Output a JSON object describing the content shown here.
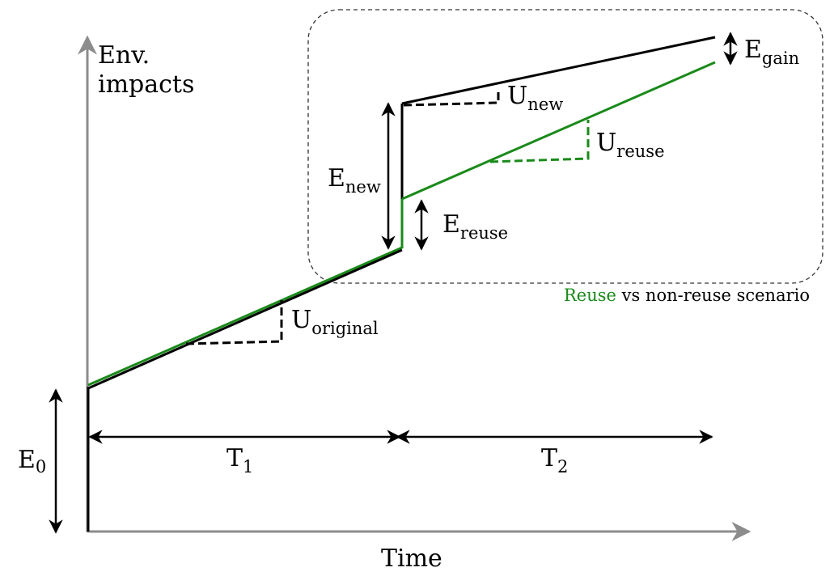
{
  "labels": {
    "y_axis_line1": "Env.",
    "y_axis_line2": "impacts",
    "x_axis": "Time",
    "e0_main": "E",
    "e0_sub": "0",
    "t1_main": "T",
    "t1_sub": "1",
    "t2_main": "T",
    "t2_sub": "2",
    "u_original_main": "U",
    "u_original_sub": "original",
    "u_new_main": "U",
    "u_new_sub": "new",
    "u_reuse_main": "U",
    "u_reuse_sub": "reuse",
    "e_new_main": "E",
    "e_new_sub": "new",
    "e_reuse_main": "E",
    "e_reuse_sub": "reuse",
    "e_gain_main": "E",
    "e_gain_sub": "gain"
  },
  "caption": {
    "highlight": "Reuse",
    "rest": " vs non-reuse scenario"
  },
  "colors": {
    "axis": "#8c8c8c",
    "non_reuse": "#000000",
    "reuse": "#1a8a1a",
    "box": "#333333"
  }
}
